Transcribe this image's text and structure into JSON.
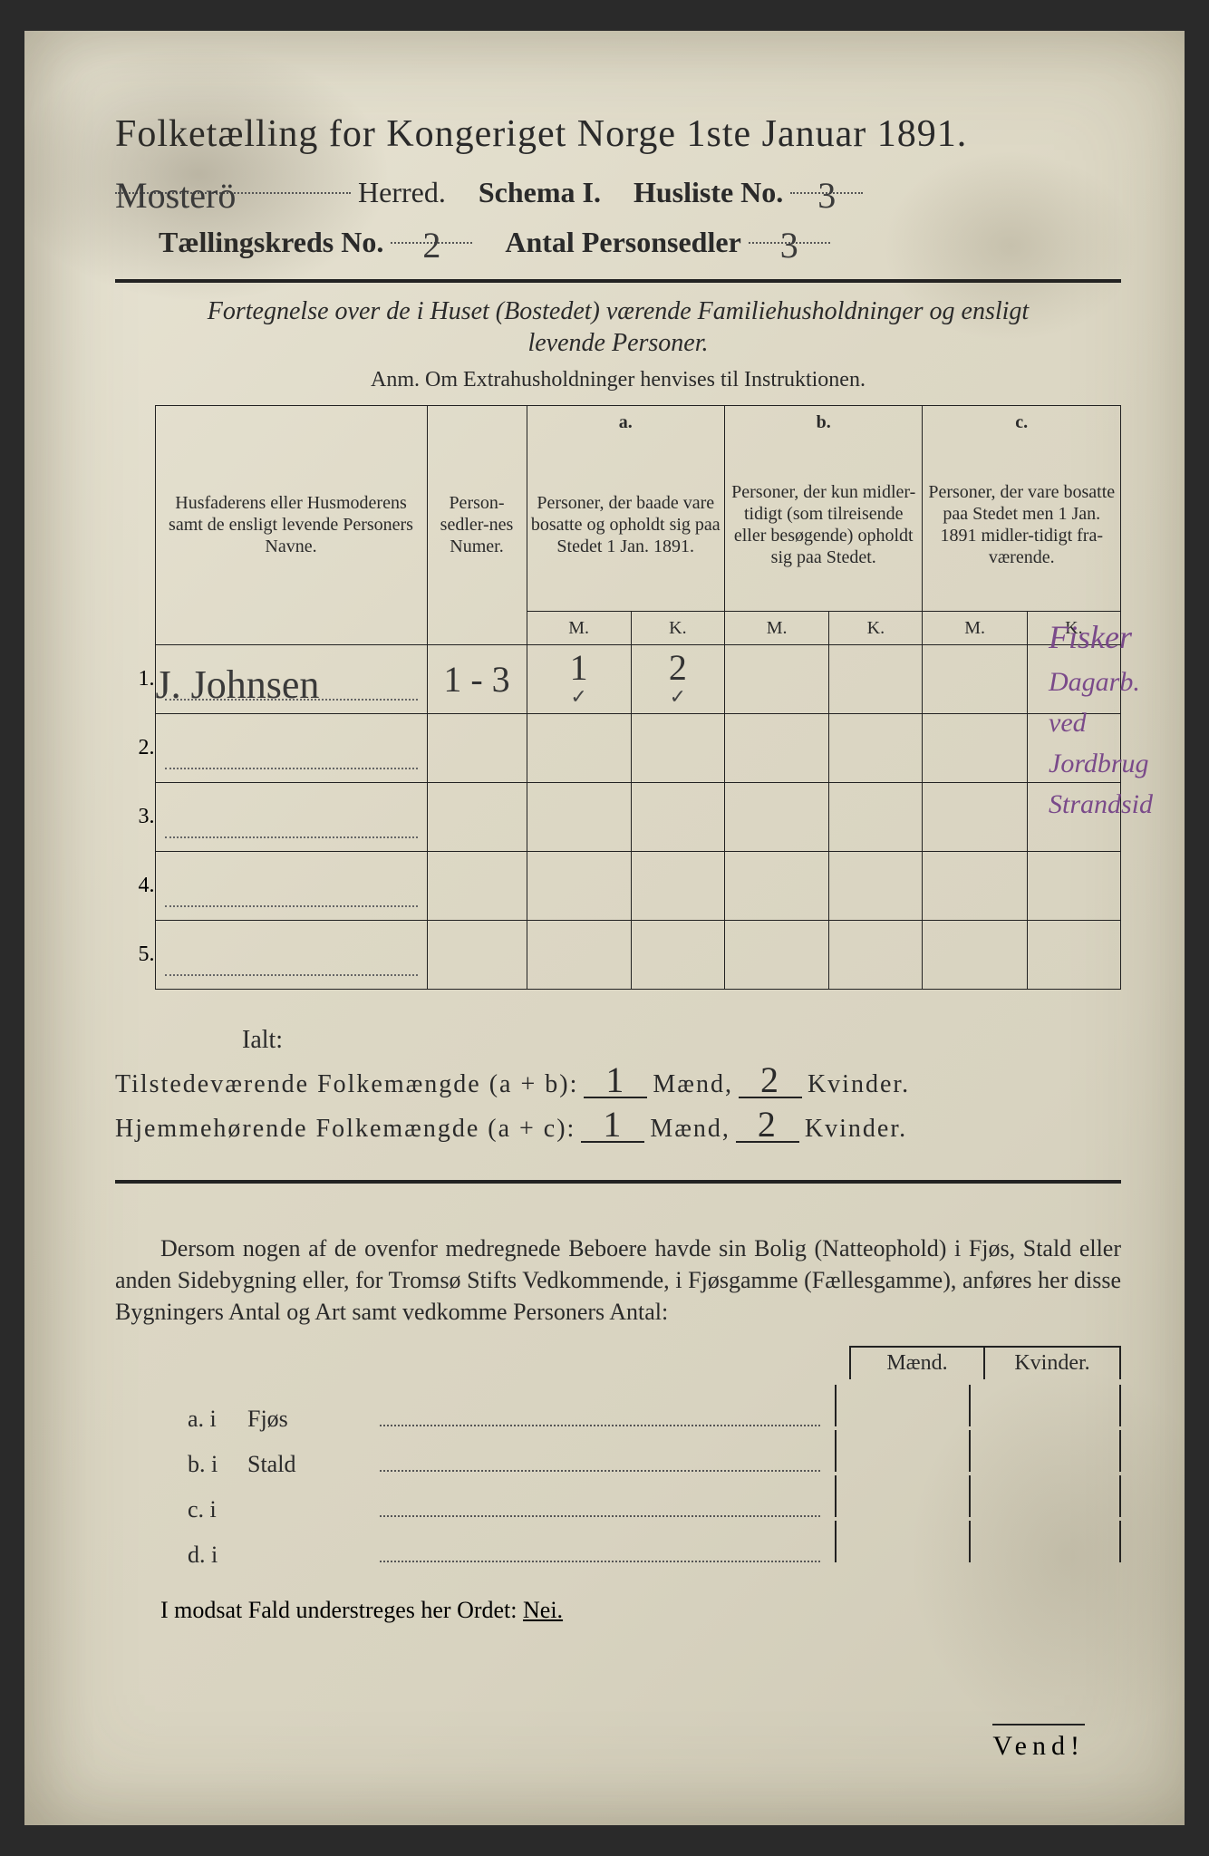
{
  "header": {
    "title": "Folketælling for Kongeriget Norge 1ste Januar 1891.",
    "herred_value": "Mosterö",
    "herred_label": "Herred.",
    "schema_label": "Schema I.",
    "husliste_label": "Husliste No.",
    "husliste_value": "3",
    "kreds_label": "Tællingskreds No.",
    "kreds_value": "2",
    "antal_label": "Antal Personsedler",
    "antal_value": "3"
  },
  "intro": {
    "line1": "Fortegnelse over de i Huset (Bostedet) værende Familiehusholdninger og ensligt",
    "line2": "levende Personer.",
    "anm": "Anm. Om Extrahusholdninger henvises til Instruktionen."
  },
  "table": {
    "col_names": "Husfaderens eller Husmoderens samt de ensligt levende Personers Navne.",
    "col_person": "Person-sedler-nes Numer.",
    "col_a_top": "a.",
    "col_a": "Personer, der baade vare bosatte og opholdt sig paa Stedet 1 Jan. 1891.",
    "col_b_top": "b.",
    "col_b": "Personer, der kun midler-tidigt (som tilreisende eller besøgende) opholdt sig paa Stedet.",
    "col_c_top": "c.",
    "col_c": "Personer, der vare bosatte paa Stedet men 1 Jan. 1891 midler-tidigt fra-værende.",
    "m": "M.",
    "k": "K.",
    "rows": [
      {
        "n": "1.",
        "name": "J. Johnsen",
        "person": "1 - 3",
        "am": "1",
        "ak": "2",
        "bm": "",
        "bk": "",
        "cm": "",
        "ck": ""
      },
      {
        "n": "2.",
        "name": "",
        "person": "",
        "am": "",
        "ak": "",
        "bm": "",
        "bk": "",
        "cm": "",
        "ck": ""
      },
      {
        "n": "3.",
        "name": "",
        "person": "",
        "am": "",
        "ak": "",
        "bm": "",
        "bk": "",
        "cm": "",
        "ck": ""
      },
      {
        "n": "4.",
        "name": "",
        "person": "",
        "am": "",
        "ak": "",
        "bm": "",
        "bk": "",
        "cm": "",
        "ck": ""
      },
      {
        "n": "5.",
        "name": "",
        "person": "",
        "am": "",
        "ak": "",
        "bm": "",
        "bk": "",
        "cm": "",
        "ck": ""
      }
    ],
    "row1_tick_m": "✓",
    "row1_tick_k": "✓"
  },
  "margin": {
    "line1": "Fisker",
    "line2": "Dagarb.",
    "line3": "ved Jordbrug",
    "line4": "Strandsid"
  },
  "totals": {
    "ialt": "Ialt:",
    "row1_label": "Tilstedeværende Folkemængde (a + b):",
    "row2_label": "Hjemmehørende Folkemængde (a + c):",
    "maend": "Mænd,",
    "kvinder": "Kvinder.",
    "r1m": "1",
    "r1k": "2",
    "r2m": "1",
    "r2k": "2"
  },
  "para2": "Dersom nogen af de ovenfor medregnede Beboere havde sin Bolig (Natteophold) i Fjøs, Stald eller anden Sidebygning eller, for Tromsø Stifts Vedkommende, i Fjøsgamme (Fællesgamme), anføres her disse Bygningers Antal og Art samt vedkomme Personers Antal:",
  "buildings": {
    "maend": "Mænd.",
    "kvinder": "Kvinder.",
    "rows": [
      {
        "lbl": "a.  i",
        "type": "Fjøs"
      },
      {
        "lbl": "b.  i",
        "type": "Stald"
      },
      {
        "lbl": "c.  i",
        "type": ""
      },
      {
        "lbl": "d.  i",
        "type": ""
      }
    ]
  },
  "modsat": {
    "text": "I modsat Fald understreges her Ordet: ",
    "nei": "Nei."
  },
  "vend": "Vend!",
  "colors": {
    "ink": "#2a2a2a",
    "handwriting": "#3a3a3a",
    "purple_stamp": "#7a4a8a",
    "paper_light": "#e8e4d4",
    "paper_dark": "#cec9b5"
  }
}
